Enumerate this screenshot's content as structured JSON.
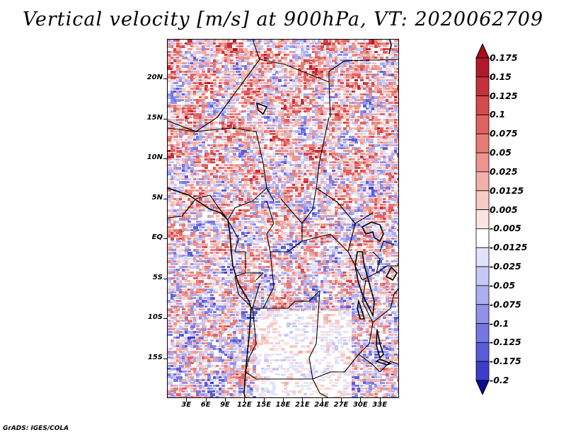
{
  "title": "Vertical velocity [m/s] at 900hPa, VT: 2020062709",
  "footer": "GrADS: IGES/COLA",
  "map": {
    "lon_range": [
      0,
      36
    ],
    "lat_range": [
      -20,
      25
    ],
    "y_ticks": [
      {
        "label": "20N",
        "lat": 20
      },
      {
        "label": "15N",
        "lat": 15
      },
      {
        "label": "10N",
        "lat": 10
      },
      {
        "label": "5N",
        "lat": 5
      },
      {
        "label": "EQ",
        "lat": 0
      },
      {
        "label": "5S",
        "lat": -5
      },
      {
        "label": "10S",
        "lat": -10
      },
      {
        "label": "15S",
        "lat": -15
      }
    ],
    "x_ticks": [
      {
        "label": "3E",
        "lon": 3
      },
      {
        "label": "6E",
        "lon": 6
      },
      {
        "label": "9E",
        "lon": 9
      },
      {
        "label": "12E",
        "lon": 12
      },
      {
        "label": "15E",
        "lon": 15
      },
      {
        "label": "18E",
        "lon": 18
      },
      {
        "label": "21E",
        "lon": 21
      },
      {
        "label": "24E",
        "lon": 24
      },
      {
        "label": "27E",
        "lon": 27
      },
      {
        "label": "30E",
        "lon": 30
      },
      {
        "label": "33E",
        "lon": 33
      }
    ]
  },
  "colorbar": {
    "levels": [
      {
        "label": "0.175",
        "color": "#b2182b"
      },
      {
        "label": "0.15",
        "color": "#c6303a"
      },
      {
        "label": "0.125",
        "color": "#d6494c"
      },
      {
        "label": "0.1",
        "color": "#e0625f"
      },
      {
        "label": "0.075",
        "color": "#e77b76"
      },
      {
        "label": "0.05",
        "color": "#ee958e"
      },
      {
        "label": "0.025",
        "color": "#f3b0aa"
      },
      {
        "label": "0.0125",
        "color": "#f8cbc6"
      },
      {
        "label": "0.005",
        "color": "#fbe4e1"
      },
      {
        "label": "-0.005",
        "color": "#ffffff"
      },
      {
        "label": "-0.0125",
        "color": "#e2e2fb"
      },
      {
        "label": "-0.025",
        "color": "#c8c8f6"
      },
      {
        "label": "-0.05",
        "color": "#adadf1"
      },
      {
        "label": "-0.075",
        "color": "#9191ea"
      },
      {
        "label": "-0.1",
        "color": "#7676e2"
      },
      {
        "label": "-0.125",
        "color": "#5b5bd8"
      },
      {
        "label": "-0.175",
        "color": "#3d3dca"
      },
      {
        "label": "-0.2",
        "color": "#1f1fb4"
      }
    ],
    "top_color": "#a50f15",
    "bottom_color": "#0a0a96"
  }
}
